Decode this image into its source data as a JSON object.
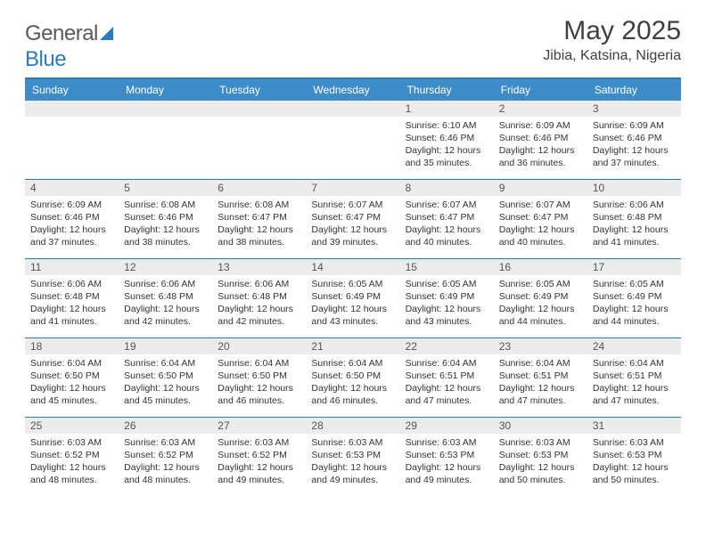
{
  "brand": {
    "word1": "General",
    "word2": "Blue"
  },
  "title": "May 2025",
  "location": "Jibia, Katsina, Nigeria",
  "colors": {
    "header_bg": "#3d8cc9",
    "rule": "#2b7bbd",
    "daynum_bg": "#ececec",
    "text": "#333333",
    "title_text": "#404040"
  },
  "day_headers": [
    "Sunday",
    "Monday",
    "Tuesday",
    "Wednesday",
    "Thursday",
    "Friday",
    "Saturday"
  ],
  "weeks": [
    [
      null,
      null,
      null,
      null,
      {
        "n": "1",
        "sr": "Sunrise: 6:10 AM",
        "ss": "Sunset: 6:46 PM",
        "dl1": "Daylight: 12 hours",
        "dl2": "and 35 minutes."
      },
      {
        "n": "2",
        "sr": "Sunrise: 6:09 AM",
        "ss": "Sunset: 6:46 PM",
        "dl1": "Daylight: 12 hours",
        "dl2": "and 36 minutes."
      },
      {
        "n": "3",
        "sr": "Sunrise: 6:09 AM",
        "ss": "Sunset: 6:46 PM",
        "dl1": "Daylight: 12 hours",
        "dl2": "and 37 minutes."
      }
    ],
    [
      {
        "n": "4",
        "sr": "Sunrise: 6:09 AM",
        "ss": "Sunset: 6:46 PM",
        "dl1": "Daylight: 12 hours",
        "dl2": "and 37 minutes."
      },
      {
        "n": "5",
        "sr": "Sunrise: 6:08 AM",
        "ss": "Sunset: 6:46 PM",
        "dl1": "Daylight: 12 hours",
        "dl2": "and 38 minutes."
      },
      {
        "n": "6",
        "sr": "Sunrise: 6:08 AM",
        "ss": "Sunset: 6:47 PM",
        "dl1": "Daylight: 12 hours",
        "dl2": "and 38 minutes."
      },
      {
        "n": "7",
        "sr": "Sunrise: 6:07 AM",
        "ss": "Sunset: 6:47 PM",
        "dl1": "Daylight: 12 hours",
        "dl2": "and 39 minutes."
      },
      {
        "n": "8",
        "sr": "Sunrise: 6:07 AM",
        "ss": "Sunset: 6:47 PM",
        "dl1": "Daylight: 12 hours",
        "dl2": "and 40 minutes."
      },
      {
        "n": "9",
        "sr": "Sunrise: 6:07 AM",
        "ss": "Sunset: 6:47 PM",
        "dl1": "Daylight: 12 hours",
        "dl2": "and 40 minutes."
      },
      {
        "n": "10",
        "sr": "Sunrise: 6:06 AM",
        "ss": "Sunset: 6:48 PM",
        "dl1": "Daylight: 12 hours",
        "dl2": "and 41 minutes."
      }
    ],
    [
      {
        "n": "11",
        "sr": "Sunrise: 6:06 AM",
        "ss": "Sunset: 6:48 PM",
        "dl1": "Daylight: 12 hours",
        "dl2": "and 41 minutes."
      },
      {
        "n": "12",
        "sr": "Sunrise: 6:06 AM",
        "ss": "Sunset: 6:48 PM",
        "dl1": "Daylight: 12 hours",
        "dl2": "and 42 minutes."
      },
      {
        "n": "13",
        "sr": "Sunrise: 6:06 AM",
        "ss": "Sunset: 6:48 PM",
        "dl1": "Daylight: 12 hours",
        "dl2": "and 42 minutes."
      },
      {
        "n": "14",
        "sr": "Sunrise: 6:05 AM",
        "ss": "Sunset: 6:49 PM",
        "dl1": "Daylight: 12 hours",
        "dl2": "and 43 minutes."
      },
      {
        "n": "15",
        "sr": "Sunrise: 6:05 AM",
        "ss": "Sunset: 6:49 PM",
        "dl1": "Daylight: 12 hours",
        "dl2": "and 43 minutes."
      },
      {
        "n": "16",
        "sr": "Sunrise: 6:05 AM",
        "ss": "Sunset: 6:49 PM",
        "dl1": "Daylight: 12 hours",
        "dl2": "and 44 minutes."
      },
      {
        "n": "17",
        "sr": "Sunrise: 6:05 AM",
        "ss": "Sunset: 6:49 PM",
        "dl1": "Daylight: 12 hours",
        "dl2": "and 44 minutes."
      }
    ],
    [
      {
        "n": "18",
        "sr": "Sunrise: 6:04 AM",
        "ss": "Sunset: 6:50 PM",
        "dl1": "Daylight: 12 hours",
        "dl2": "and 45 minutes."
      },
      {
        "n": "19",
        "sr": "Sunrise: 6:04 AM",
        "ss": "Sunset: 6:50 PM",
        "dl1": "Daylight: 12 hours",
        "dl2": "and 45 minutes."
      },
      {
        "n": "20",
        "sr": "Sunrise: 6:04 AM",
        "ss": "Sunset: 6:50 PM",
        "dl1": "Daylight: 12 hours",
        "dl2": "and 46 minutes."
      },
      {
        "n": "21",
        "sr": "Sunrise: 6:04 AM",
        "ss": "Sunset: 6:50 PM",
        "dl1": "Daylight: 12 hours",
        "dl2": "and 46 minutes."
      },
      {
        "n": "22",
        "sr": "Sunrise: 6:04 AM",
        "ss": "Sunset: 6:51 PM",
        "dl1": "Daylight: 12 hours",
        "dl2": "and 47 minutes."
      },
      {
        "n": "23",
        "sr": "Sunrise: 6:04 AM",
        "ss": "Sunset: 6:51 PM",
        "dl1": "Daylight: 12 hours",
        "dl2": "and 47 minutes."
      },
      {
        "n": "24",
        "sr": "Sunrise: 6:04 AM",
        "ss": "Sunset: 6:51 PM",
        "dl1": "Daylight: 12 hours",
        "dl2": "and 47 minutes."
      }
    ],
    [
      {
        "n": "25",
        "sr": "Sunrise: 6:03 AM",
        "ss": "Sunset: 6:52 PM",
        "dl1": "Daylight: 12 hours",
        "dl2": "and 48 minutes."
      },
      {
        "n": "26",
        "sr": "Sunrise: 6:03 AM",
        "ss": "Sunset: 6:52 PM",
        "dl1": "Daylight: 12 hours",
        "dl2": "and 48 minutes."
      },
      {
        "n": "27",
        "sr": "Sunrise: 6:03 AM",
        "ss": "Sunset: 6:52 PM",
        "dl1": "Daylight: 12 hours",
        "dl2": "and 49 minutes."
      },
      {
        "n": "28",
        "sr": "Sunrise: 6:03 AM",
        "ss": "Sunset: 6:53 PM",
        "dl1": "Daylight: 12 hours",
        "dl2": "and 49 minutes."
      },
      {
        "n": "29",
        "sr": "Sunrise: 6:03 AM",
        "ss": "Sunset: 6:53 PM",
        "dl1": "Daylight: 12 hours",
        "dl2": "and 49 minutes."
      },
      {
        "n": "30",
        "sr": "Sunrise: 6:03 AM",
        "ss": "Sunset: 6:53 PM",
        "dl1": "Daylight: 12 hours",
        "dl2": "and 50 minutes."
      },
      {
        "n": "31",
        "sr": "Sunrise: 6:03 AM",
        "ss": "Sunset: 6:53 PM",
        "dl1": "Daylight: 12 hours",
        "dl2": "and 50 minutes."
      }
    ]
  ]
}
